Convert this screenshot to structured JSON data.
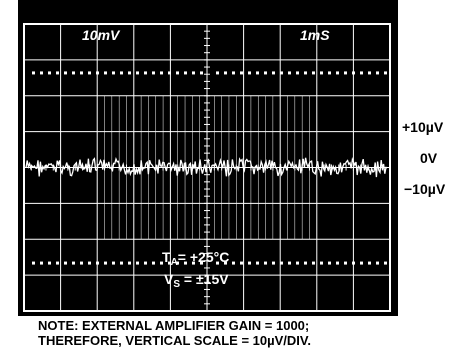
{
  "chart_data": {
    "type": "line",
    "title": "",
    "xlabel": "",
    "ylabel": "",
    "scale_labels": {
      "vertical": "10mV",
      "horizontal": "1mS"
    },
    "conditions": {
      "ta": "= +25°C",
      "vs": " = ±15V"
    },
    "y_tick_labels": [
      "+10µV",
      "0V",
      "−10µV"
    ],
    "x_divisions": 10,
    "y_divisions": 8,
    "series": [
      {
        "description": "noise trace centered at 0V",
        "baseline_uV": 0,
        "peak_to_peak_uV": 4
      }
    ],
    "grid": true,
    "background": "#000000",
    "trace_color": "#ffffff"
  },
  "note": {
    "line1": "NOTE: EXTERNAL AMPLIFIER GAIN = 1000;",
    "line2": "THEREFORE, VERTICAL SCALE = 10µV/DIV."
  }
}
